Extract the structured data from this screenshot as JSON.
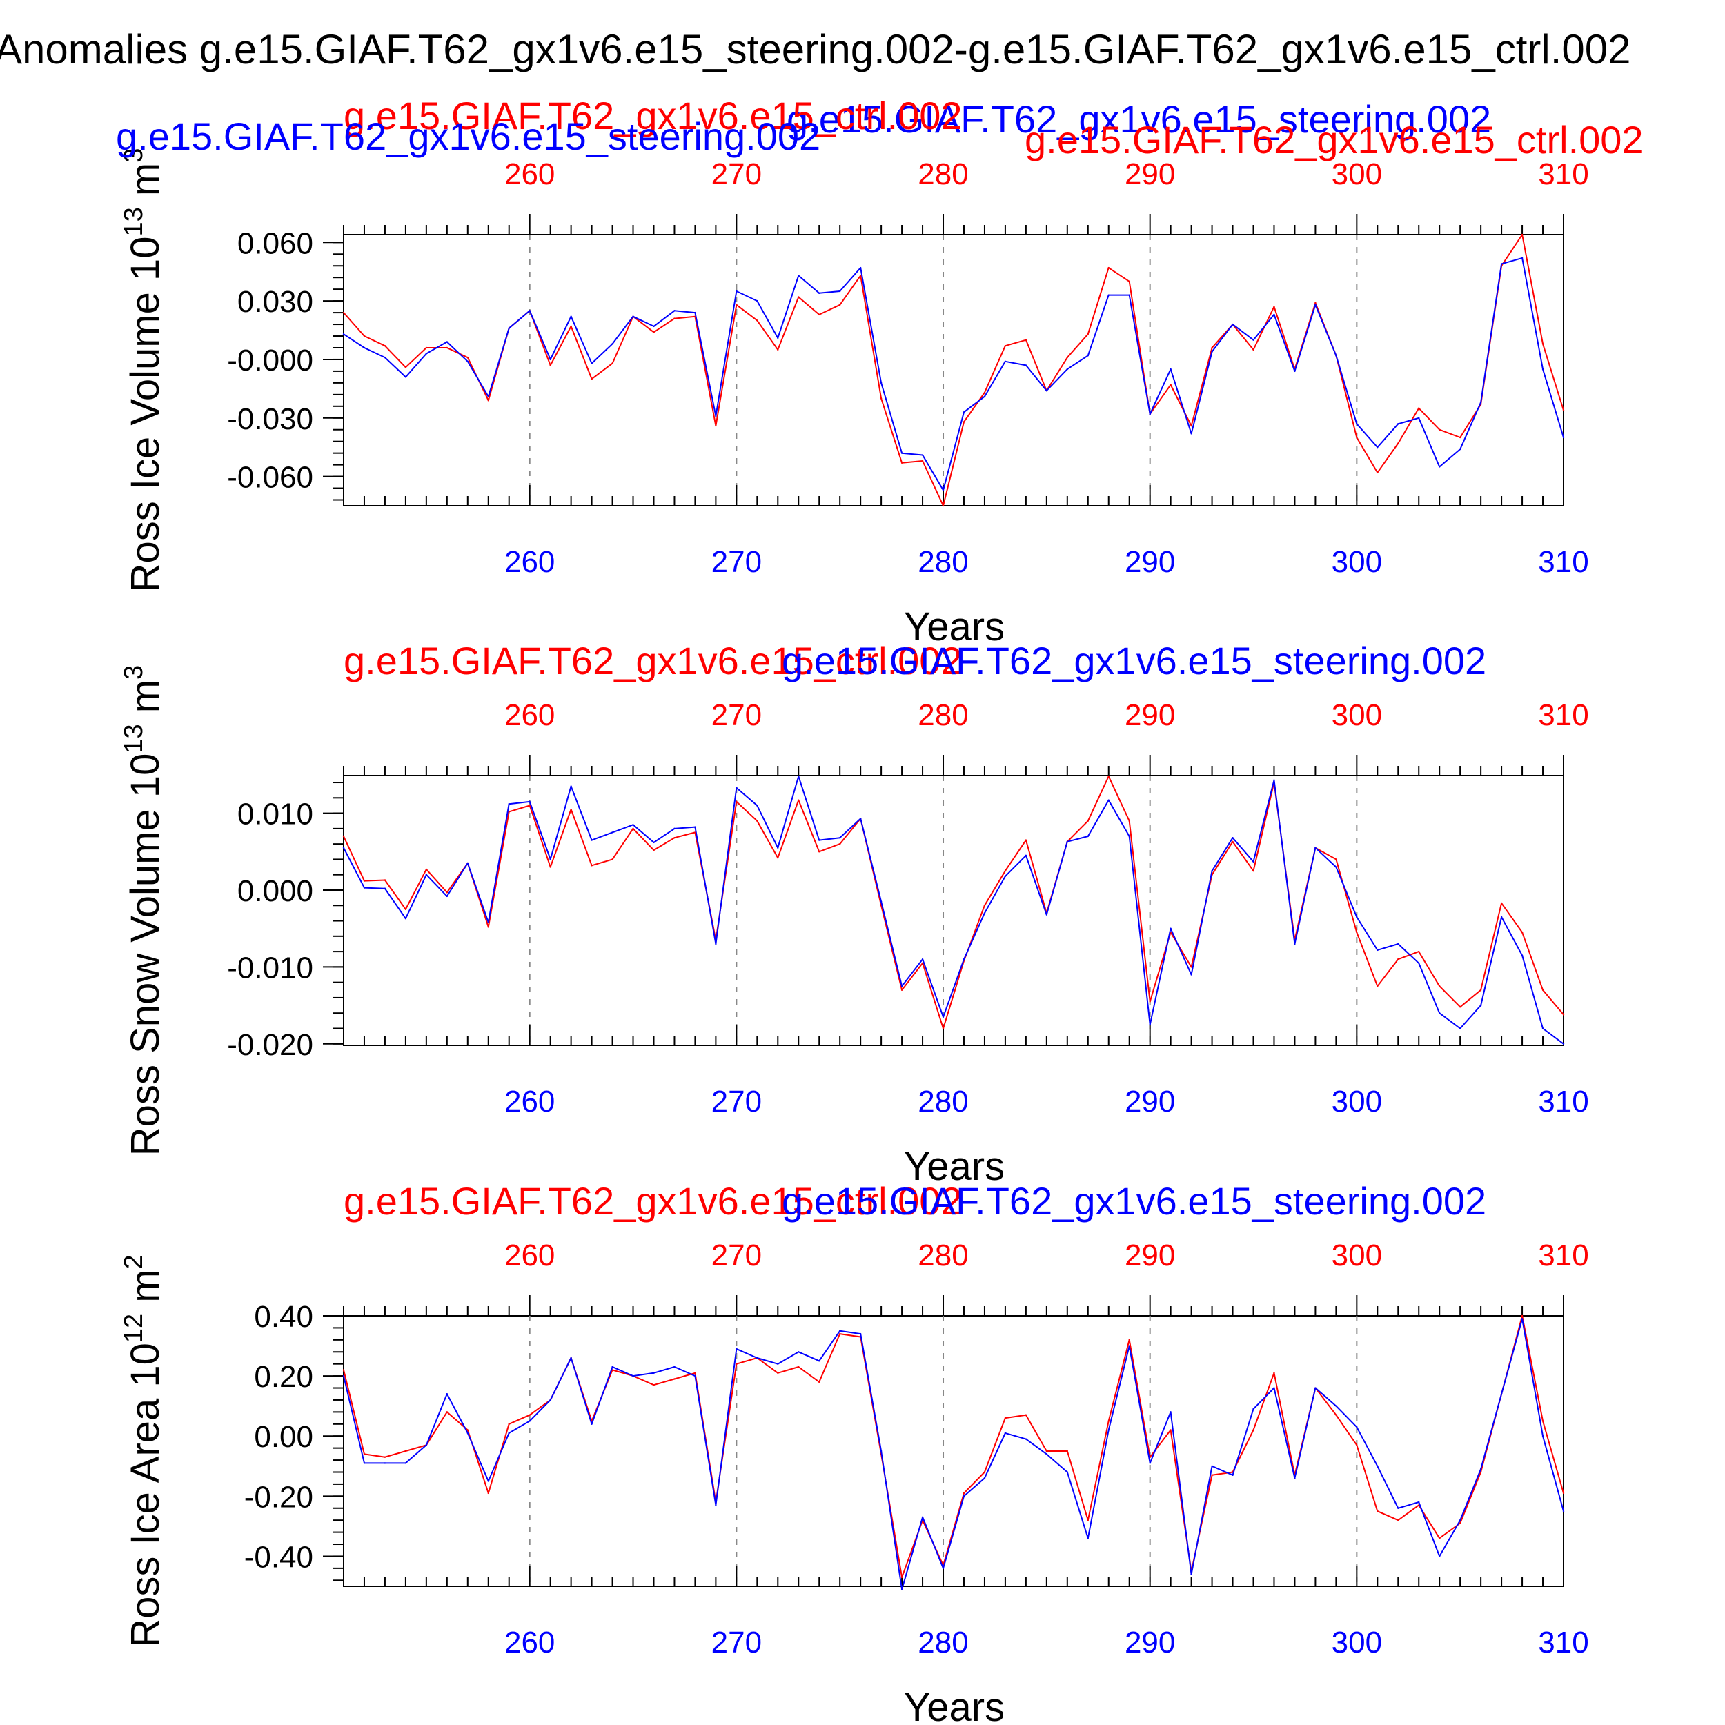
{
  "title": "Anomalies g.e15.GIAF.T62_gx1v6.e15_steering.002-g.e15.GIAF.T62_gx1v6.e15_ctrl.002",
  "colors": {
    "ctrl": "#ff0000",
    "steering": "#0000ff",
    "axis": "#000000",
    "grid": "#888888"
  },
  "legend_top_extra": {
    "steering": "g.e15.GIAF.T62_gx1v6.e15_steering.002",
    "ctrl": "g.e15.GIAF.T62_gx1v6.e15_ctrl.002"
  },
  "chart_data": [
    {
      "type": "line",
      "name": "ross-ice-volume",
      "ylabel": "Ross Ice Volume 10",
      "ylabel_exp": "13",
      "ylabel_unit": " m",
      "ylabel_unit_exp": "3",
      "xlabel": "Years",
      "xlim": [
        251,
        310
      ],
      "ylim": [
        -0.075,
        0.064
      ],
      "yticks": [
        0.06,
        0.03,
        0.0,
        -0.03,
        -0.06
      ],
      "yticklabels": [
        "0.060",
        "0.030",
        "-0.000",
        "-0.030",
        "-0.060"
      ],
      "xticks": [
        260,
        270,
        280,
        290,
        300,
        310
      ],
      "xticklabels": [
        "260",
        "270",
        "280",
        "290",
        "300",
        "310"
      ],
      "grid_x": [
        260,
        270,
        280,
        290,
        300
      ],
      "legend_ctrl": "g.e15.GIAF.T62_gx1v6.e15_ctrl.002",
      "legend_steering": "g.e15.GIAF.T62_gx1v6.e15_steering.002",
      "x": [
        251,
        252,
        253,
        254,
        255,
        256,
        257,
        258,
        259,
        260,
        261,
        262,
        263,
        264,
        265,
        266,
        267,
        268,
        269,
        270,
        271,
        272,
        273,
        274,
        275,
        276,
        277,
        278,
        279,
        280,
        281,
        282,
        283,
        284,
        285,
        286,
        287,
        288,
        289,
        290,
        291,
        292,
        293,
        294,
        295,
        296,
        297,
        298,
        299,
        300,
        301,
        302,
        303,
        304,
        305,
        306,
        307,
        308,
        309,
        310
      ],
      "series": [
        {
          "name": "g.e15.GIAF.T62_gx1v6.e15_ctrl.002",
          "color": "ctrl",
          "values": [
            0.024,
            0.012,
            0.007,
            -0.004,
            0.006,
            0.006,
            0.001,
            -0.021,
            0.016,
            0.025,
            -0.003,
            0.017,
            -0.01,
            -0.002,
            0.022,
            0.014,
            0.021,
            0.022,
            -0.034,
            0.028,
            0.02,
            0.005,
            0.032,
            0.023,
            0.028,
            0.043,
            -0.02,
            -0.053,
            -0.052,
            -0.075,
            -0.032,
            -0.017,
            0.007,
            0.01,
            -0.016,
            0.001,
            0.013,
            0.047,
            0.04,
            -0.028,
            -0.013,
            -0.034,
            0.006,
            0.018,
            0.005,
            0.027,
            -0.005,
            0.029,
            0.002,
            -0.04,
            -0.058,
            -0.043,
            -0.025,
            -0.036,
            -0.04,
            -0.023,
            0.048,
            0.064,
            0.008,
            -0.026
          ]
        },
        {
          "name": "g.e15.GIAF.T62_gx1v6.e15_steering.002",
          "color": "steering",
          "values": [
            0.013,
            0.006,
            0.001,
            -0.009,
            0.003,
            0.009,
            -0.001,
            -0.019,
            0.016,
            0.025,
            0.0,
            0.022,
            -0.002,
            0.008,
            0.022,
            0.017,
            0.025,
            0.024,
            -0.029,
            0.035,
            0.03,
            0.011,
            0.043,
            0.034,
            0.035,
            0.047,
            -0.012,
            -0.048,
            -0.049,
            -0.067,
            -0.027,
            -0.019,
            -0.001,
            -0.003,
            -0.016,
            -0.005,
            0.002,
            0.033,
            0.033,
            -0.028,
            -0.005,
            -0.038,
            0.004,
            0.018,
            0.01,
            0.023,
            -0.006,
            0.028,
            0.002,
            -0.033,
            -0.045,
            -0.033,
            -0.03,
            -0.055,
            -0.046,
            -0.022,
            0.049,
            0.052,
            -0.005,
            -0.04
          ]
        }
      ]
    },
    {
      "type": "line",
      "name": "ross-snow-volume",
      "ylabel": "Ross Snow Volume 10",
      "ylabel_exp": "13",
      "ylabel_unit": " m",
      "ylabel_unit_exp": "3",
      "xlabel": "Years",
      "xlim": [
        251,
        310
      ],
      "ylim": [
        -0.0202,
        0.0149
      ],
      "yticks": [
        0.01,
        0.0,
        -0.01,
        -0.02
      ],
      "yticklabels": [
        "0.010",
        "0.000",
        "-0.010",
        "-0.020"
      ],
      "xticks": [
        260,
        270,
        280,
        290,
        300,
        310
      ],
      "xticklabels": [
        "260",
        "270",
        "280",
        "290",
        "300",
        "310"
      ],
      "grid_x": [
        260,
        270,
        280,
        290,
        300
      ],
      "legend_ctrl": "g.e15.GIAF.T62_gx1v6.e15_ctrl.002",
      "legend_steering": "g.e15.GIAF.T62_gx1v6.e15_steering.002",
      "x": [
        251,
        252,
        253,
        254,
        255,
        256,
        257,
        258,
        259,
        260,
        261,
        262,
        263,
        264,
        265,
        266,
        267,
        268,
        269,
        270,
        271,
        272,
        273,
        274,
        275,
        276,
        277,
        278,
        279,
        280,
        281,
        282,
        283,
        284,
        285,
        286,
        287,
        288,
        289,
        290,
        291,
        292,
        293,
        294,
        295,
        296,
        297,
        298,
        299,
        300,
        301,
        302,
        303,
        304,
        305,
        306,
        307,
        308,
        309,
        310
      ],
      "series": [
        {
          "name": "g.e15.GIAF.T62_gx1v6.e15_ctrl.002",
          "color": "ctrl",
          "values": [
            0.007,
            0.0012,
            0.0013,
            -0.0025,
            0.0027,
            -0.0003,
            0.0035,
            -0.0048,
            0.0102,
            0.011,
            0.003,
            0.0105,
            0.0032,
            0.004,
            0.008,
            0.0052,
            0.0068,
            0.0075,
            -0.0065,
            0.0115,
            0.009,
            0.0042,
            0.0117,
            0.005,
            0.006,
            0.0093,
            -0.002,
            -0.013,
            -0.0095,
            -0.018,
            -0.0092,
            -0.002,
            0.0025,
            0.0065,
            -0.003,
            0.0063,
            0.009,
            0.0148,
            0.009,
            -0.0145,
            -0.0055,
            -0.01,
            0.002,
            0.0063,
            0.0025,
            0.014,
            -0.0065,
            0.0055,
            0.004,
            -0.0055,
            -0.0125,
            -0.009,
            -0.008,
            -0.0125,
            -0.0152,
            -0.013,
            -0.0017,
            -0.0055,
            -0.013,
            -0.0162
          ]
        },
        {
          "name": "g.e15.GIAF.T62_gx1v6.e15_steering.002",
          "color": "steering",
          "values": [
            0.0055,
            0.0003,
            0.0002,
            -0.0037,
            0.002,
            -0.0008,
            0.0035,
            -0.0042,
            0.0112,
            0.0115,
            0.004,
            0.0135,
            0.0065,
            0.0075,
            0.0085,
            0.0062,
            0.008,
            0.0082,
            -0.007,
            0.0133,
            0.011,
            0.0055,
            0.0148,
            0.0065,
            0.0068,
            0.0093,
            -0.0015,
            -0.0125,
            -0.009,
            -0.0165,
            -0.009,
            -0.003,
            0.0018,
            0.0045,
            -0.0032,
            0.0063,
            0.007,
            0.0117,
            0.007,
            -0.0175,
            -0.005,
            -0.011,
            0.0025,
            0.0068,
            0.0037,
            0.0143,
            -0.007,
            0.0055,
            0.003,
            -0.0035,
            -0.0078,
            -0.007,
            -0.0095,
            -0.016,
            -0.018,
            -0.015,
            -0.0035,
            -0.0085,
            -0.018,
            -0.02
          ]
        }
      ]
    },
    {
      "type": "line",
      "name": "ross-ice-area",
      "ylabel": "Ross Ice Area 10",
      "ylabel_exp": "12",
      "ylabel_unit": " m",
      "ylabel_unit_exp": "2",
      "xlabel": "Years",
      "xlim": [
        251,
        310
      ],
      "ylim": [
        -0.5,
        0.4
      ],
      "yticks": [
        0.4,
        0.2,
        0.0,
        -0.2,
        -0.4
      ],
      "yticklabels": [
        "0.40",
        "0.20",
        "0.00",
        "-0.20",
        "-0.40"
      ],
      "xticks": [
        260,
        270,
        280,
        290,
        300,
        310
      ],
      "xticklabels": [
        "260",
        "270",
        "280",
        "290",
        "300",
        "310"
      ],
      "grid_x": [
        260,
        270,
        280,
        290,
        300
      ],
      "legend_ctrl": "g.e15.GIAF.T62_gx1v6.e15_ctrl.002",
      "legend_steering": "g.e15.GIAF.T62_gx1v6.e15_steering.002",
      "x": [
        251,
        252,
        253,
        254,
        255,
        256,
        257,
        258,
        259,
        260,
        261,
        262,
        263,
        264,
        265,
        266,
        267,
        268,
        269,
        270,
        271,
        272,
        273,
        274,
        275,
        276,
        277,
        278,
        279,
        280,
        281,
        282,
        283,
        284,
        285,
        286,
        287,
        288,
        289,
        290,
        291,
        292,
        293,
        294,
        295,
        296,
        297,
        298,
        299,
        300,
        301,
        302,
        303,
        304,
        305,
        306,
        307,
        308,
        309,
        310
      ],
      "series": [
        {
          "name": "g.e15.GIAF.T62_gx1v6.e15_ctrl.002",
          "color": "ctrl",
          "values": [
            0.22,
            -0.06,
            -0.07,
            -0.05,
            -0.03,
            0.08,
            0.02,
            -0.19,
            0.04,
            0.07,
            0.12,
            0.26,
            0.05,
            0.22,
            0.2,
            0.17,
            0.19,
            0.21,
            -0.22,
            0.24,
            0.26,
            0.21,
            0.23,
            0.18,
            0.34,
            0.33,
            -0.06,
            -0.47,
            -0.28,
            -0.43,
            -0.19,
            -0.12,
            0.06,
            0.07,
            -0.05,
            -0.05,
            -0.28,
            0.05,
            0.32,
            -0.07,
            0.02,
            -0.45,
            -0.13,
            -0.12,
            0.02,
            0.21,
            -0.13,
            0.16,
            0.07,
            -0.03,
            -0.25,
            -0.28,
            -0.23,
            -0.34,
            -0.29,
            -0.12,
            0.14,
            0.4,
            0.05,
            -0.19
          ]
        },
        {
          "name": "g.e15.GIAF.T62_gx1v6.e15_steering.002",
          "color": "steering",
          "values": [
            0.2,
            -0.09,
            -0.09,
            -0.09,
            -0.03,
            0.14,
            0.01,
            -0.15,
            0.01,
            0.05,
            0.12,
            0.26,
            0.04,
            0.23,
            0.2,
            0.21,
            0.23,
            0.2,
            -0.23,
            0.29,
            0.26,
            0.24,
            0.28,
            0.25,
            0.35,
            0.34,
            -0.05,
            -0.51,
            -0.27,
            -0.44,
            -0.2,
            -0.14,
            0.01,
            -0.01,
            -0.06,
            -0.12,
            -0.34,
            0.02,
            0.3,
            -0.09,
            0.08,
            -0.46,
            -0.1,
            -0.13,
            0.09,
            0.16,
            -0.14,
            0.16,
            0.1,
            0.03,
            -0.1,
            -0.24,
            -0.22,
            -0.4,
            -0.28,
            -0.11,
            0.14,
            0.39,
            0.0,
            -0.25
          ]
        }
      ]
    }
  ]
}
